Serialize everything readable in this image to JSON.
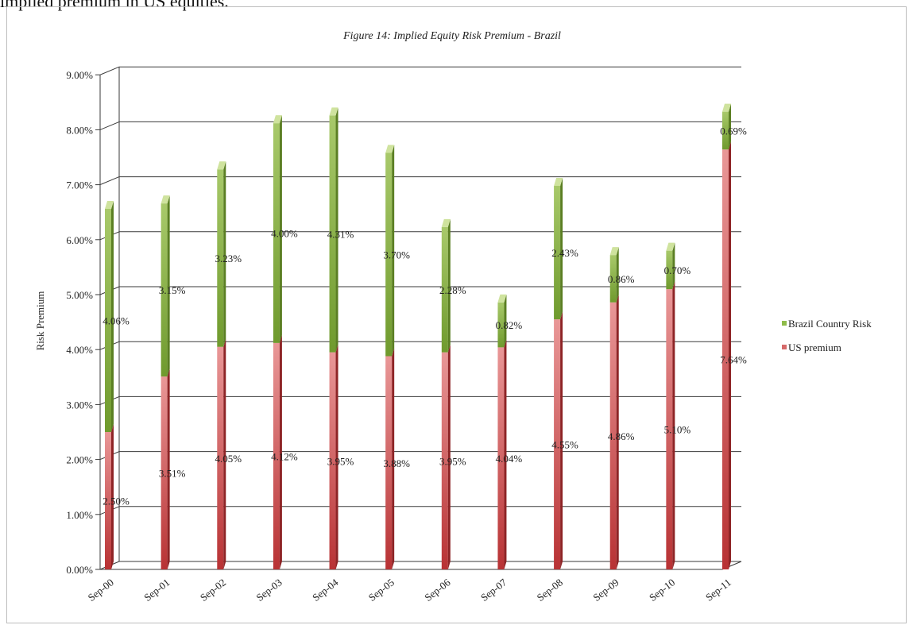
{
  "page": {
    "top_text": "implied premium in US equities."
  },
  "colors": {
    "us_premium": "#c0393b",
    "us_premium_light": "#e58a8a",
    "brazil_risk": "#7fa83a",
    "brazil_risk_light": "#b9d37b",
    "grid": "#333333"
  },
  "chart_data": {
    "type": "bar",
    "stacked": true,
    "title": "Figure 14: Implied Equity Risk Premium - Brazil",
    "xlabel": "",
    "ylabel": "Risk Premium",
    "ylim": [
      0,
      9
    ],
    "yticks": [
      "0.00%",
      "1.00%",
      "2.00%",
      "3.00%",
      "4.00%",
      "5.00%",
      "6.00%",
      "7.00%",
      "8.00%",
      "9.00%"
    ],
    "categories": [
      "Sep-00",
      "Sep-01",
      "Sep-02",
      "Sep-03",
      "Sep-04",
      "Sep-05",
      "Sep-06",
      "Sep-07",
      "Sep-08",
      "Sep-09",
      "Sep-10",
      "Sep-11"
    ],
    "series": [
      {
        "name": "US premium",
        "values": [
          2.5,
          3.51,
          4.05,
          4.12,
          3.95,
          3.88,
          3.95,
          4.04,
          4.55,
          4.86,
          5.1,
          7.64
        ],
        "labels": [
          "2.50%",
          "3.51%",
          "4.05%",
          "4.12%",
          "3.95%",
          "3.88%",
          "3.95%",
          "4.04%",
          "4.55%",
          "4.86%",
          "5.10%",
          "7.64%"
        ]
      },
      {
        "name": "Brazil Country Risk",
        "values": [
          4.06,
          3.15,
          3.23,
          4.0,
          4.31,
          3.7,
          2.28,
          0.82,
          2.43,
          0.86,
          0.7,
          0.69
        ],
        "labels": [
          "4.06%",
          "3.15%",
          "3.23%",
          "4.00%",
          "4.31%",
          "3.70%",
          "2.28%",
          "0.82%",
          "2.43%",
          "0.86%",
          "0.70%",
          "0.69%"
        ]
      }
    ],
    "legend": [
      "Brazil Country Risk",
      "US premium"
    ],
    "legend_position": "right",
    "grid": true
  }
}
